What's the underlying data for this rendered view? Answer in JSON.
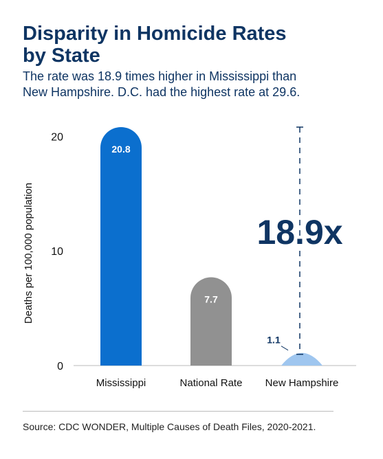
{
  "header": {
    "title_line1": "Disparity in Homicide Rates",
    "title_line2": "by State",
    "subtitle_line1": "The rate was 18.9 times higher in Mississippi than",
    "subtitle_line2": "New Hampshire. D.C. had the highest rate at 29.6."
  },
  "chart_data": {
    "type": "bar",
    "categories": [
      "Mississippi",
      "National Rate",
      "New Hampshire"
    ],
    "values": [
      20.8,
      7.7,
      1.1
    ],
    "value_labels": [
      "20.8",
      "7.7",
      "1.1"
    ],
    "bar_colors": [
      "#0b6fce",
      "#919191",
      "#9fc6ef"
    ],
    "ylabel": "Deaths per 100,000 population",
    "ylim": [
      0,
      20.8
    ],
    "yticks": [
      0,
      10,
      20
    ],
    "ytick_labels": [
      "0",
      "10",
      "20"
    ],
    "grid": false,
    "annotation": {
      "text": "18.9x",
      "from_value": 20.8,
      "to_value": 1.1,
      "color": "#0f3563"
    }
  },
  "footer": {
    "source": "Source: CDC WONDER, Multiple Causes of Death Files, 2020-2021."
  }
}
